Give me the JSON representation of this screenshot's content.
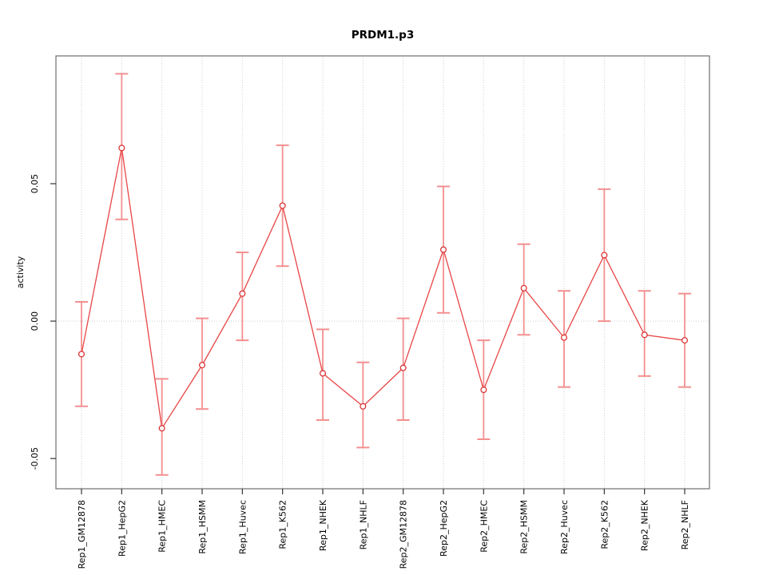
{
  "figure": {
    "title": "PRDM1.p3",
    "y_axis_label": "activity"
  },
  "chart_data": {
    "type": "line",
    "subtype": "points-with-error-bars",
    "title": "PRDM1.p3",
    "xlabel": "",
    "ylabel": "activity",
    "ylim": [
      -0.061,
      0.0965
    ],
    "grid": {
      "vertical_dotted_per_category": true,
      "horizontal_dotted_at_zero": true
    },
    "legend": "none",
    "yticks": [
      {
        "value": 0.05,
        "label": "0.05"
      },
      {
        "value": 0.0,
        "label": "0.00"
      },
      {
        "value": -0.05,
        "label": "-0.05"
      }
    ],
    "points": [
      {
        "label": "Rep1_GM12878",
        "value": -0.012,
        "lower": -0.031,
        "upper": 0.007
      },
      {
        "label": "Rep1_HepG2",
        "value": 0.063,
        "lower": 0.037,
        "upper": 0.09
      },
      {
        "label": "Rep1_HMEC",
        "value": -0.039,
        "lower": -0.056,
        "upper": -0.021
      },
      {
        "label": "Rep1_HSMM",
        "value": -0.016,
        "lower": -0.032,
        "upper": 0.001
      },
      {
        "label": "Rep1_Huvec",
        "value": 0.01,
        "lower": -0.007,
        "upper": 0.025
      },
      {
        "label": "Rep1_K562",
        "value": 0.042,
        "lower": 0.02,
        "upper": 0.064
      },
      {
        "label": "Rep1_NHEK",
        "value": -0.019,
        "lower": -0.036,
        "upper": -0.003
      },
      {
        "label": "Rep1_NHLF",
        "value": -0.031,
        "lower": -0.046,
        "upper": -0.015
      },
      {
        "label": "Rep2_GM12878",
        "value": -0.017,
        "lower": -0.036,
        "upper": 0.001
      },
      {
        "label": "Rep2_HepG2",
        "value": 0.026,
        "lower": 0.003,
        "upper": 0.049
      },
      {
        "label": "Rep2_HMEC",
        "value": -0.025,
        "lower": -0.043,
        "upper": -0.007
      },
      {
        "label": "Rep2_HSMM",
        "value": 0.012,
        "lower": -0.005,
        "upper": 0.028
      },
      {
        "label": "Rep2_Huvec",
        "value": -0.006,
        "lower": -0.024,
        "upper": 0.011
      },
      {
        "label": "Rep2_K562",
        "value": 0.024,
        "lower": 0.0,
        "upper": 0.048
      },
      {
        "label": "Rep2_NHEK",
        "value": -0.005,
        "lower": -0.02,
        "upper": 0.011
      },
      {
        "label": "Rep2_NHLF",
        "value": -0.007,
        "lower": -0.024,
        "upper": 0.01
      }
    ],
    "colors": {
      "series_line": "#e84545",
      "error_bar": "#f48f8f",
      "point_stroke": "#d93636",
      "point_fill": "#ffffff",
      "gridline": "#cfcfcf",
      "plot_border": "#6e6e6e",
      "tick": "#333333",
      "text": "#000000"
    }
  }
}
